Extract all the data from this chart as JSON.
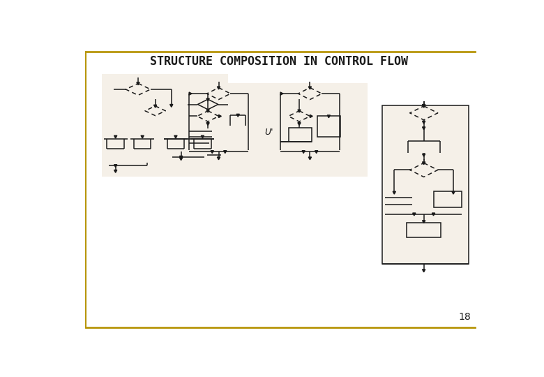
{
  "title": "STRUCTURE COMPOSITION IN CONTROL FLOW",
  "page_number": "18",
  "bg_color": "#ffffff",
  "panel_bg": "#f5f0e8",
  "border_color": "#b8960c",
  "line_color": "#1a1a1a",
  "title_fontsize": 12,
  "figsize": [
    7.8,
    5.4
  ]
}
